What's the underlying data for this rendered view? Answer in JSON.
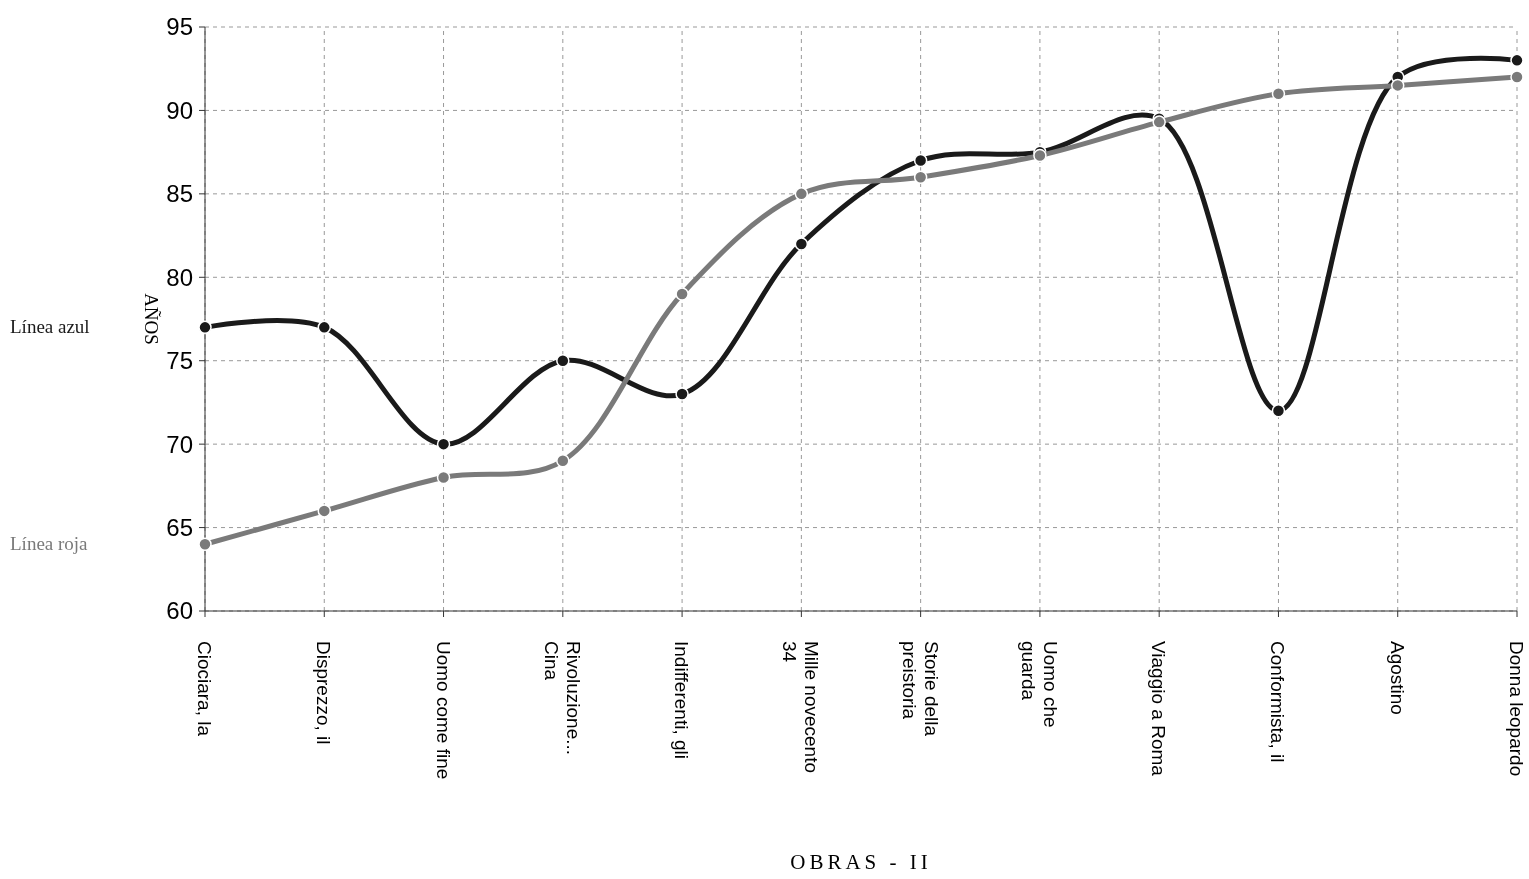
{
  "chart_data": {
    "type": "line",
    "xlabel": "OBRAS - II",
    "ylabel": "AÑOS",
    "categories": [
      "Ciociara, la",
      "Disprezzo, il",
      "Uomo come fine",
      "Rivoluzione...\nCina",
      "Indifferenti, gli",
      "Mille novecento\n34",
      "Storie della\npreistoria",
      "Uomo che\nguarda",
      "Viaggio a Roma",
      "Conformista, il",
      "Agostino",
      "Donna leopardo"
    ],
    "series": [
      {
        "name": "Línea azul",
        "color": "#1a1a1a",
        "values": [
          77,
          77,
          70,
          75,
          73,
          82,
          87,
          87.5,
          89.5,
          72,
          92,
          93
        ]
      },
      {
        "name": "Línea roja",
        "color": "#7a7a7a",
        "values": [
          64,
          66,
          68,
          69,
          79,
          85,
          86,
          87.3,
          89.3,
          91,
          91.5,
          92
        ]
      }
    ],
    "ylim": [
      60,
      95
    ],
    "yticks": [
      60,
      65,
      70,
      75,
      80,
      85,
      90,
      95
    ],
    "grid": true,
    "marker": "circle",
    "line_style": "solid"
  }
}
